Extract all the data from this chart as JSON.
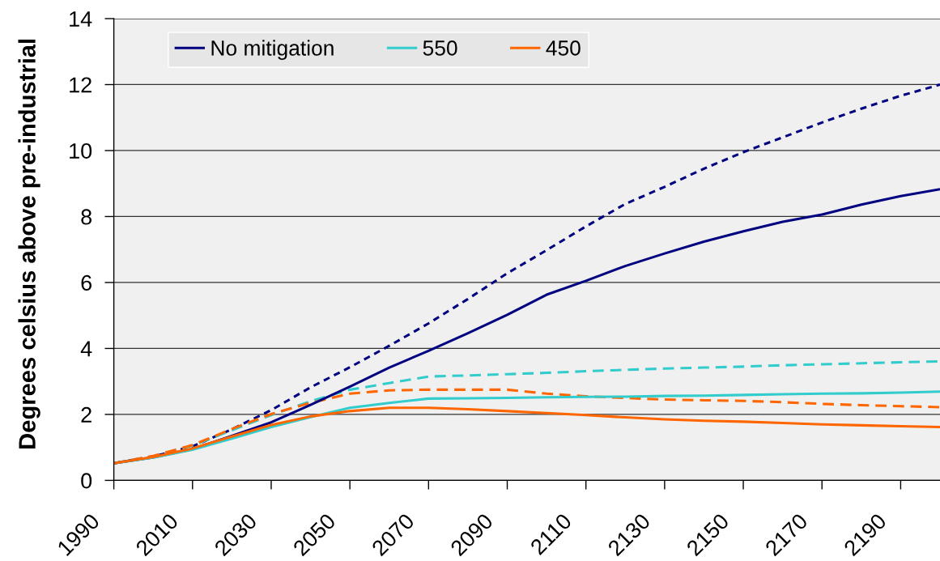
{
  "chart_data": {
    "type": "line",
    "ylabel": "Degrees celsius above pre-industrial",
    "x": [
      1990,
      2000,
      2010,
      2020,
      2030,
      2040,
      2050,
      2060,
      2070,
      2080,
      2090,
      2100,
      2110,
      2120,
      2130,
      2140,
      2150,
      2160,
      2170,
      2180,
      2190,
      2200
    ],
    "xlim": [
      1990,
      2200
    ],
    "xticks": [
      1990,
      2010,
      2030,
      2050,
      2070,
      2090,
      2110,
      2130,
      2150,
      2170,
      2190
    ],
    "ylim": [
      0,
      14
    ],
    "yticks": [
      0,
      2,
      4,
      6,
      8,
      10,
      12,
      14
    ],
    "grid": "y",
    "legend": "top left",
    "marker": "none",
    "series": [
      {
        "color": "#000080",
        "line_style": "dotted",
        "values": [
          0.52,
          0.72,
          1.03,
          1.55,
          2.13,
          2.82,
          3.43,
          4.08,
          4.76,
          5.5,
          6.28,
          6.98,
          7.7,
          8.38,
          8.9,
          9.45,
          9.95,
          10.4,
          10.85,
          11.27,
          11.66,
          12.0
        ]
      },
      {
        "color": "#33cccc",
        "line_style": "dashed",
        "values": [
          0.52,
          0.73,
          1.05,
          1.52,
          1.98,
          2.4,
          2.75,
          2.95,
          3.15,
          3.18,
          3.22,
          3.26,
          3.31,
          3.35,
          3.39,
          3.42,
          3.45,
          3.49,
          3.52,
          3.55,
          3.58,
          3.61
        ]
      },
      {
        "color": "#ff6600",
        "line_style": "dashed",
        "values": [
          0.52,
          0.74,
          1.07,
          1.56,
          2.01,
          2.35,
          2.63,
          2.73,
          2.75,
          2.75,
          2.75,
          2.63,
          2.55,
          2.5,
          2.45,
          2.43,
          2.41,
          2.37,
          2.32,
          2.28,
          2.25,
          2.22
        ]
      },
      {
        "name": "No mitigation",
        "color": "#000080",
        "line_style": "solid",
        "values": [
          0.52,
          0.7,
          0.95,
          1.35,
          1.76,
          2.29,
          2.84,
          3.42,
          3.93,
          4.46,
          5.02,
          5.63,
          6.05,
          6.5,
          6.88,
          7.24,
          7.55,
          7.84,
          8.06,
          8.36,
          8.62,
          8.83
        ]
      },
      {
        "name": "550",
        "color": "#33cccc",
        "line_style": "solid",
        "values": [
          0.52,
          0.69,
          0.93,
          1.27,
          1.62,
          1.92,
          2.2,
          2.35,
          2.48,
          2.49,
          2.5,
          2.52,
          2.53,
          2.54,
          2.56,
          2.57,
          2.59,
          2.61,
          2.63,
          2.64,
          2.66,
          2.69
        ]
      },
      {
        "name": "450",
        "color": "#ff6600",
        "line_style": "solid",
        "values": [
          0.52,
          0.71,
          0.97,
          1.33,
          1.68,
          1.94,
          2.1,
          2.2,
          2.2,
          2.16,
          2.1,
          2.04,
          1.98,
          1.91,
          1.85,
          1.81,
          1.78,
          1.74,
          1.7,
          1.67,
          1.64,
          1.62
        ]
      }
    ]
  }
}
